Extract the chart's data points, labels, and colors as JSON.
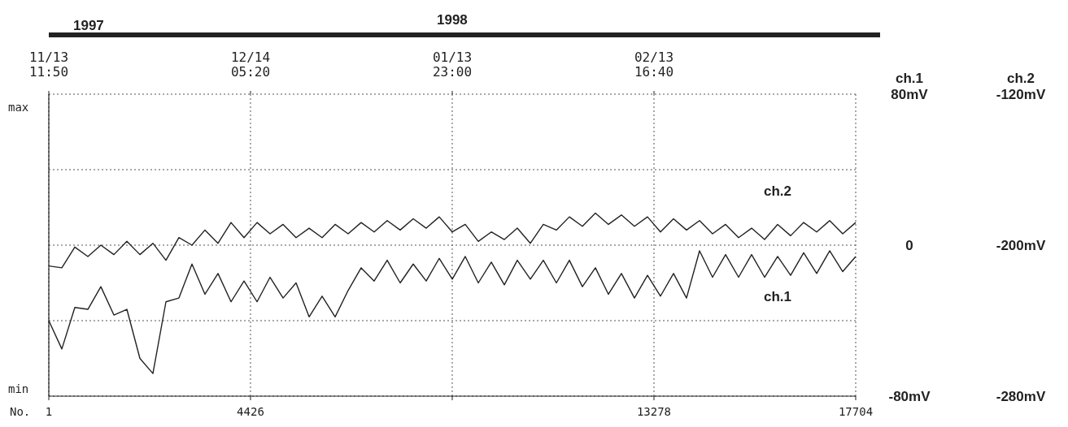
{
  "chart_data": {
    "type": "line",
    "xlabel": "No.",
    "ylabel": "ch.1",
    "y2label": "ch.2",
    "annotations": [
      "max",
      "min",
      "1997",
      "1998"
    ],
    "xlim": [
      1,
      17704
    ],
    "xticks": [
      1,
      4426,
      {
        "value": 8852,
        "label": null
      },
      13278,
      17704
    ],
    "x2lim": [
      "1997-11-13T11:50",
      "1998-03-16T10:10"
    ],
    "x2ticks": [
      {
        "value": "1997-11-13T11:50",
        "label": "11/13 11:50"
      },
      {
        "value": "1997-12-14T05:20",
        "label": "12/14 05:20"
      },
      {
        "value": "1998-01-13T23:00",
        "label": "01/13 23:00"
      },
      {
        "value": "1998-02-13T16:40",
        "label": "02/13 16:40"
      }
    ],
    "ylim": [
      -80,
      80
    ],
    "yticks": [
      {
        "value": -80,
        "label": "-80mV"
      },
      {
        "value": -40,
        "label": null
      },
      0,
      {
        "value": 40,
        "label": null
      },
      {
        "value": 80,
        "label": "80mV"
      }
    ],
    "y2lim": [
      -280,
      -120
    ],
    "y2ticks": [
      {
        "value": -280,
        "label": "-280mV"
      },
      {
        "value": -200,
        "label": "-200mV"
      },
      {
        "value": -120,
        "label": "-120mV"
      }
    ],
    "grid": true,
    "x": [
      1,
      287,
      572,
      858,
      1143,
      1429,
      1714,
      2000,
      2285,
      2571,
      2856,
      3142,
      3427,
      3713,
      3999,
      4284,
      4570,
      4855,
      5141,
      5426,
      5712,
      5997,
      6283,
      6568,
      6854,
      7139,
      7425,
      7710,
      7996,
      8281,
      8567,
      8853,
      9138,
      9424,
      9709,
      9995,
      10280,
      10566,
      10851,
      11137,
      11422,
      11708,
      11993,
      12279,
      12564,
      12850,
      13136,
      13421,
      13707,
      13992,
      14278,
      14563,
      14849,
      15134,
      15420,
      15705,
      15991,
      16276,
      16562,
      16848,
      17133,
      17419,
      17704
    ],
    "series": [
      {
        "name": "ch.1",
        "color": "#222222",
        "values": [
          -40,
          -55,
          -33,
          -34,
          -22,
          -37,
          -34,
          -60,
          -68,
          -30,
          -28,
          -10,
          -26,
          -15,
          -30,
          -19,
          -30,
          -17,
          -28,
          -20,
          -38,
          -27,
          -38,
          -24,
          -12,
          -19,
          -8,
          -20,
          -10,
          -19,
          -7,
          -18,
          -6,
          -20,
          -9,
          -21,
          -8,
          -18,
          -8,
          -20,
          -8,
          -22,
          -12,
          -26,
          -15,
          -28,
          -16,
          -27,
          -15,
          -28,
          -3,
          -17,
          -5,
          -17,
          -5,
          -17,
          -6,
          -16,
          -4,
          -15,
          -3,
          -14,
          -6
        ]
      },
      {
        "name": "ch.2",
        "color": "#222222",
        "axis": "y2",
        "values": [
          -211,
          -212,
          -201,
          -206,
          -200,
          -205,
          -198,
          -205,
          -199,
          -208,
          -196,
          -200,
          -192,
          -199,
          -188,
          -196,
          -188,
          -194,
          -189,
          -196,
          -191,
          -196,
          -189,
          -194,
          -188,
          -193,
          -187,
          -192,
          -186,
          -191,
          -185,
          -193,
          -189,
          -198,
          -193,
          -197,
          -191,
          -199,
          -189,
          -192,
          -185,
          -190,
          -183,
          -189,
          -184,
          -190,
          -185,
          -193,
          -186,
          -192,
          -187,
          -194,
          -189,
          -196,
          -191,
          -197,
          -189,
          -195,
          -188,
          -193,
          -187,
          -194,
          -188
        ]
      }
    ]
  }
}
